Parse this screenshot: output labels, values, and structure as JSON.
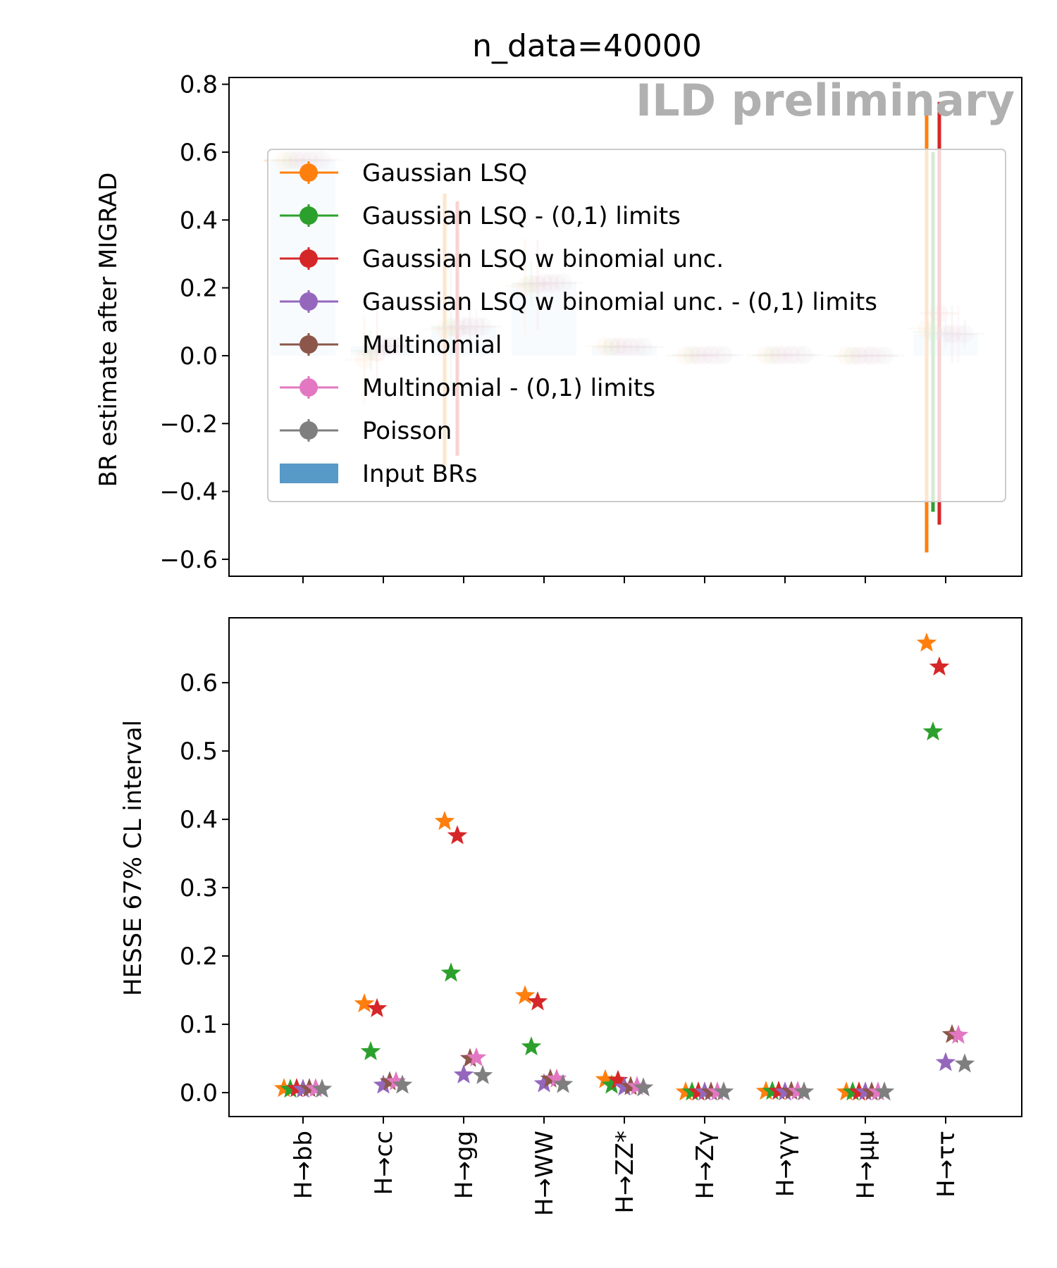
{
  "figure": {
    "title": "n_data=40000",
    "watermark": "ILD preliminary"
  },
  "chart_data": [
    {
      "type": "scatter",
      "panel": "top",
      "ylabel": "BR estimate after MIGRAD",
      "xlabel": "",
      "ylim": [
        -0.65,
        0.82
      ],
      "yticks": [
        -0.6,
        -0.4,
        -0.2,
        0.0,
        0.2,
        0.4,
        0.6,
        0.8
      ],
      "ytick_labels": [
        "−0.6",
        "−0.4",
        "−0.2",
        "0.0",
        "0.2",
        "0.4",
        "0.6",
        "0.8"
      ],
      "categories": [
        "H→bb",
        "H→cc",
        "H→gg",
        "H→WW",
        "H→ZZ*",
        "H→Zγ",
        "H→γγ",
        "H→μμ",
        "H→ττ"
      ],
      "input_brs": {
        "name": "Input BRs",
        "color": "#1f77b4",
        "values": [
          0.577,
          0.029,
          0.086,
          0.215,
          0.026,
          0.002,
          0.002,
          0.0002,
          0.064
        ]
      },
      "series": [
        {
          "name": "Gaussian LSQ",
          "color": "#ff7f0e",
          "values": [
            0.575,
            -0.012,
            0.078,
            0.205,
            0.028,
            0.0,
            0.001,
            -0.001,
            0.08
          ],
          "errors": [
            0.006,
            0.13,
            0.4,
            0.14,
            0.019,
            0.002,
            0.003,
            0.002,
            0.66
          ]
        },
        {
          "name": "Gaussian LSQ - (0,1) limits",
          "color": "#2ca02c",
          "values": [
            0.577,
            0.015,
            0.085,
            0.212,
            0.026,
            0.002,
            0.002,
            0.0,
            0.07
          ],
          "errors": [
            0.006,
            0.06,
            0.175,
            0.067,
            0.011,
            0.002,
            0.002,
            0.001,
            0.53
          ]
        },
        {
          "name": "Gaussian LSQ w binomial unc.",
          "color": "#d62728",
          "values": [
            0.576,
            0.01,
            0.08,
            0.21,
            0.027,
            0.001,
            0.002,
            0.0,
            0.125
          ],
          "errors": [
            0.006,
            0.123,
            0.375,
            0.133,
            0.018,
            0.002,
            0.003,
            0.002,
            0.623
          ]
        },
        {
          "name": "Gaussian LSQ w binomial unc. - (0,1) limits",
          "color": "#9467bd",
          "values": [
            0.577,
            0.028,
            0.087,
            0.214,
            0.026,
            0.002,
            0.002,
            0.0003,
            0.065
          ],
          "errors": [
            0.005,
            0.011,
            0.026,
            0.013,
            0.008,
            0.001,
            0.001,
            0.0005,
            0.044
          ]
        },
        {
          "name": "Multinomial",
          "color": "#8c564b",
          "values": [
            0.576,
            0.029,
            0.086,
            0.214,
            0.026,
            0.002,
            0.002,
            0.0003,
            0.064
          ],
          "errors": [
            0.006,
            0.017,
            0.05,
            0.02,
            0.008,
            0.001,
            0.002,
            0.0005,
            0.085
          ]
        },
        {
          "name": "Multinomial - (0,1) limits",
          "color": "#e377c2",
          "values": [
            0.577,
            0.029,
            0.086,
            0.215,
            0.026,
            0.002,
            0.002,
            0.0002,
            0.064
          ],
          "errors": [
            0.006,
            0.016,
            0.05,
            0.02,
            0.008,
            0.001,
            0.002,
            0.0005,
            0.085
          ]
        },
        {
          "name": "Poisson",
          "color": "#7f7f7f",
          "values": [
            0.577,
            0.029,
            0.086,
            0.215,
            0.026,
            0.002,
            0.002,
            0.0002,
            0.064
          ],
          "errors": [
            0.005,
            0.011,
            0.025,
            0.012,
            0.007,
            0.001,
            0.001,
            0.0004,
            0.042
          ]
        }
      ],
      "legend": {
        "placement": "center",
        "entries": [
          "Gaussian LSQ",
          "Gaussian LSQ - (0,1) limits",
          "Gaussian LSQ w binomial unc.",
          "Gaussian LSQ w binomial unc. - (0,1) limits",
          "Multinomial",
          "Multinomial - (0,1) limits",
          "Poisson",
          "Input BRs"
        ]
      }
    },
    {
      "type": "scatter",
      "panel": "bottom",
      "ylabel": "HESSE 67% CL interval",
      "xlabel": "",
      "ylim": [
        -0.035,
        0.695
      ],
      "yticks": [
        0.0,
        0.1,
        0.2,
        0.3,
        0.4,
        0.5,
        0.6
      ],
      "ytick_labels": [
        "0.0",
        "0.1",
        "0.2",
        "0.3",
        "0.4",
        "0.5",
        "0.6"
      ],
      "categories": [
        "H→bb",
        "H→cc",
        "H→gg",
        "H→WW",
        "H→ZZ*",
        "H→Zγ",
        "H→γγ",
        "H→μμ",
        "H→ττ"
      ],
      "marker": "star",
      "series": [
        {
          "name": "Gaussian LSQ",
          "color": "#ff7f0e",
          "values": [
            0.006,
            0.13,
            0.397,
            0.142,
            0.019,
            0.001,
            0.002,
            0.001,
            0.658
          ]
        },
        {
          "name": "Gaussian LSQ - (0,1) limits",
          "color": "#2ca02c",
          "values": [
            0.005,
            0.06,
            0.175,
            0.067,
            0.011,
            0.001,
            0.002,
            0.001,
            0.528
          ]
        },
        {
          "name": "Gaussian LSQ w binomial unc.",
          "color": "#d62728",
          "values": [
            0.006,
            0.123,
            0.376,
            0.133,
            0.018,
            0.001,
            0.002,
            0.001,
            0.623
          ]
        },
        {
          "name": "Gaussian LSQ w binomial unc. - (0,1) limits",
          "color": "#9467bd",
          "values": [
            0.005,
            0.011,
            0.026,
            0.013,
            0.008,
            0.001,
            0.001,
            0.001,
            0.044
          ]
        },
        {
          "name": "Multinomial",
          "color": "#8c564b",
          "values": [
            0.006,
            0.016,
            0.05,
            0.02,
            0.009,
            0.001,
            0.002,
            0.001,
            0.085
          ]
        },
        {
          "name": "Multinomial - (0,1) limits",
          "color": "#e377c2",
          "values": [
            0.006,
            0.016,
            0.051,
            0.02,
            0.009,
            0.001,
            0.002,
            0.001,
            0.084
          ]
        },
        {
          "name": "Poisson",
          "color": "#7f7f7f",
          "values": [
            0.005,
            0.011,
            0.025,
            0.012,
            0.007,
            0.001,
            0.001,
            0.001,
            0.042
          ]
        }
      ]
    }
  ]
}
